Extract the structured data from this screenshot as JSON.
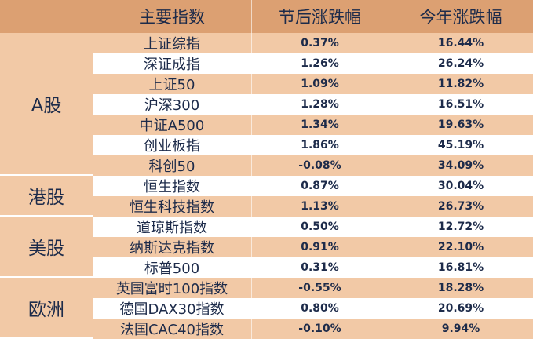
{
  "header": {
    "col_index": "主要指数",
    "col_holiday": "节后涨跌幅",
    "col_ytd": "今年涨跌幅"
  },
  "regions": [
    {
      "label": "A股",
      "rows": [
        {
          "name": "上证综指",
          "holiday": "0.37%",
          "ytd": "16.44%"
        },
        {
          "name": "深证成指",
          "holiday": "1.26%",
          "ytd": "26.24%"
        },
        {
          "name": "上证50",
          "holiday": "1.09%",
          "ytd": "11.82%"
        },
        {
          "name": "沪深300",
          "holiday": "1.28%",
          "ytd": "16.51%"
        },
        {
          "name": "中证A500",
          "holiday": "1.34%",
          "ytd": "19.63%"
        },
        {
          "name": "创业板指",
          "holiday": "1.86%",
          "ytd": "45.19%"
        },
        {
          "name": "科创50",
          "holiday": "-0.08%",
          "ytd": "34.09%"
        }
      ]
    },
    {
      "label": "港股",
      "rows": [
        {
          "name": "恒生指数",
          "holiday": "0.87%",
          "ytd": "30.04%"
        },
        {
          "name": "恒生科技指数",
          "holiday": "1.13%",
          "ytd": "26.73%"
        }
      ]
    },
    {
      "label": "美股",
      "rows": [
        {
          "name": "道琼斯指数",
          "holiday": "0.50%",
          "ytd": "12.72%"
        },
        {
          "name": "纳斯达克指数",
          "holiday": "0.91%",
          "ytd": "22.10%"
        },
        {
          "name": "标普500",
          "holiday": "0.31%",
          "ytd": "16.81%"
        }
      ]
    },
    {
      "label": "欧洲",
      "rows": [
        {
          "name": "英国富时100指数",
          "holiday": "-0.55%",
          "ytd": "18.28%"
        },
        {
          "name": "德国DAX30指数",
          "holiday": "0.80%",
          "ytd": "20.69%"
        },
        {
          "name": "法国CAC40指数",
          "holiday": "-0.10%",
          "ytd": "9.94%"
        }
      ]
    }
  ],
  "colors": {
    "header_bg": "#DCA072",
    "band_bg": "#F2C9A6",
    "text": "#1d2b4a"
  }
}
